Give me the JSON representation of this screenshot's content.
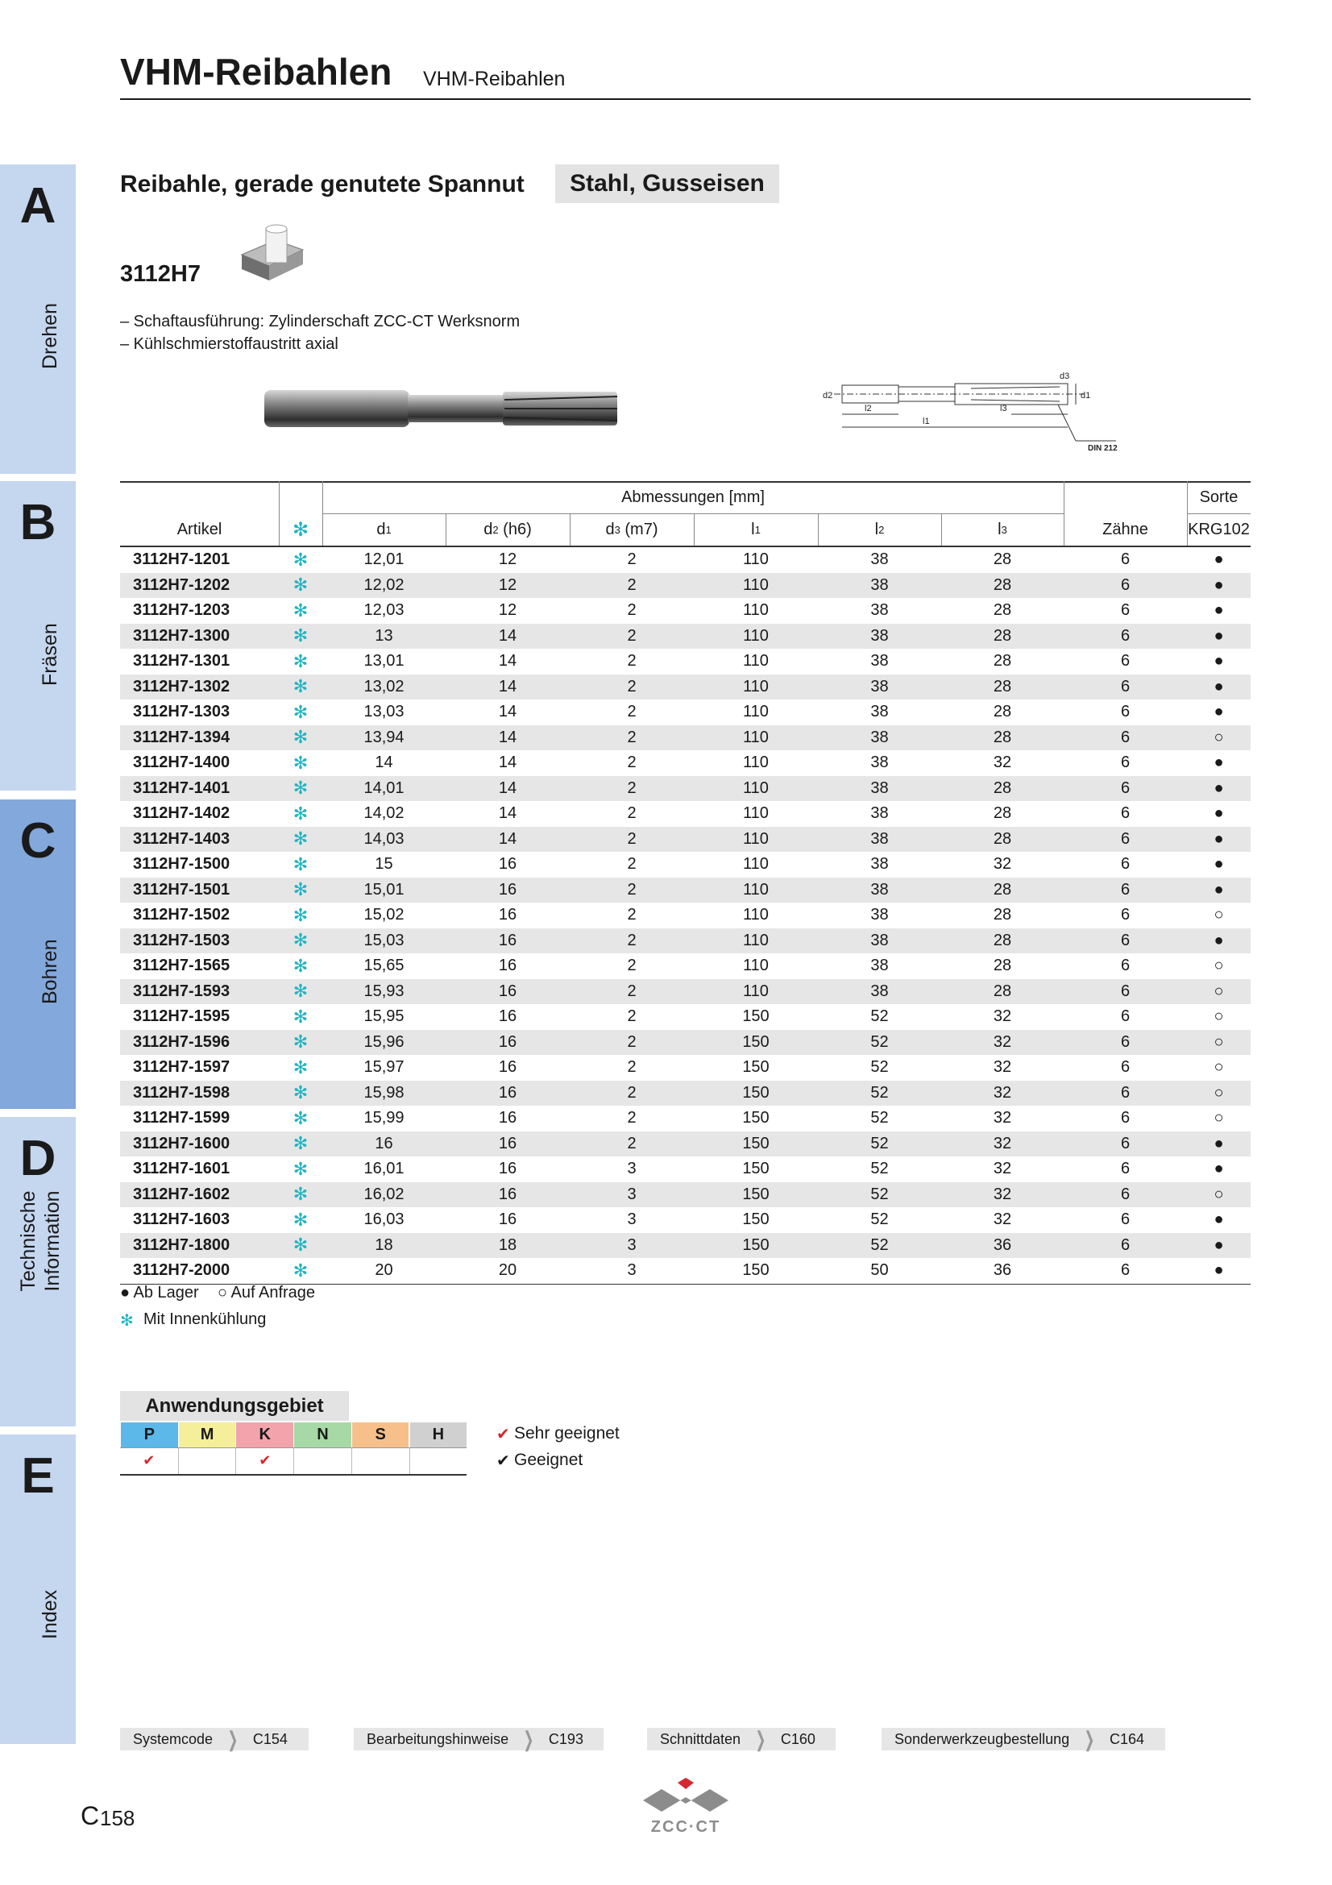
{
  "header": {
    "title": "VHM-Reibahlen",
    "subtitle": "VHM-Reibahlen"
  },
  "tabs": [
    {
      "letter": "A",
      "label": "Drehen"
    },
    {
      "letter": "B",
      "label": "Fräsen"
    },
    {
      "letter": "C",
      "label": "Bohren"
    },
    {
      "letter": "D",
      "label": "Technische Information"
    },
    {
      "letter": "E",
      "label": "Index"
    }
  ],
  "section": {
    "title": "Reibahle, gerade genutete Spannut",
    "material": "Stahl, Gusseisen",
    "code": "3112H7",
    "bullets": [
      "– Schaftausführung: Zylinderschaft ZCC-CT Werksnorm",
      "– Kühlschmierstoffaustritt axial"
    ]
  },
  "drawing": {
    "labels": [
      "d2",
      "l2",
      "l1",
      "l3",
      "d3",
      "d1"
    ],
    "norm": "DIN 212"
  },
  "table": {
    "group_header": "Abmessungen [mm]",
    "grade_header": "Sorte",
    "columns": [
      {
        "main": "Artikel"
      },
      {
        "main": "d",
        "sub": "1"
      },
      {
        "main": "d",
        "sub": "2",
        "suffix": " (h6)"
      },
      {
        "main": "d",
        "sub": "3",
        "suffix": " (m7)"
      },
      {
        "main": "l",
        "sub": "1"
      },
      {
        "main": "l",
        "sub": "2"
      },
      {
        "main": "l",
        "sub": "3"
      },
      {
        "main": "Zähne"
      },
      {
        "main": "KRG102"
      }
    ],
    "rows": [
      [
        "3112H7-1201",
        "12,01",
        "12",
        "2",
        "110",
        "38",
        "28",
        "6",
        "●"
      ],
      [
        "3112H7-1202",
        "12,02",
        "12",
        "2",
        "110",
        "38",
        "28",
        "6",
        "●"
      ],
      [
        "3112H7-1203",
        "12,03",
        "12",
        "2",
        "110",
        "38",
        "28",
        "6",
        "●"
      ],
      [
        "3112H7-1300",
        "13",
        "14",
        "2",
        "110",
        "38",
        "28",
        "6",
        "●"
      ],
      [
        "3112H7-1301",
        "13,01",
        "14",
        "2",
        "110",
        "38",
        "28",
        "6",
        "●"
      ],
      [
        "3112H7-1302",
        "13,02",
        "14",
        "2",
        "110",
        "38",
        "28",
        "6",
        "●"
      ],
      [
        "3112H7-1303",
        "13,03",
        "14",
        "2",
        "110",
        "38",
        "28",
        "6",
        "●"
      ],
      [
        "3112H7-1394",
        "13,94",
        "14",
        "2",
        "110",
        "38",
        "28",
        "6",
        "○"
      ],
      [
        "3112H7-1400",
        "14",
        "14",
        "2",
        "110",
        "38",
        "32",
        "6",
        "●"
      ],
      [
        "3112H7-1401",
        "14,01",
        "14",
        "2",
        "110",
        "38",
        "28",
        "6",
        "●"
      ],
      [
        "3112H7-1402",
        "14,02",
        "14",
        "2",
        "110",
        "38",
        "28",
        "6",
        "●"
      ],
      [
        "3112H7-1403",
        "14,03",
        "14",
        "2",
        "110",
        "38",
        "28",
        "6",
        "●"
      ],
      [
        "3112H7-1500",
        "15",
        "16",
        "2",
        "110",
        "38",
        "32",
        "6",
        "●"
      ],
      [
        "3112H7-1501",
        "15,01",
        "16",
        "2",
        "110",
        "38",
        "28",
        "6",
        "●"
      ],
      [
        "3112H7-1502",
        "15,02",
        "16",
        "2",
        "110",
        "38",
        "28",
        "6",
        "○"
      ],
      [
        "3112H7-1503",
        "15,03",
        "16",
        "2",
        "110",
        "38",
        "28",
        "6",
        "●"
      ],
      [
        "3112H7-1565",
        "15,65",
        "16",
        "2",
        "110",
        "38",
        "28",
        "6",
        "○"
      ],
      [
        "3112H7-1593",
        "15,93",
        "16",
        "2",
        "110",
        "38",
        "28",
        "6",
        "○"
      ],
      [
        "3112H7-1595",
        "15,95",
        "16",
        "2",
        "150",
        "52",
        "32",
        "6",
        "○"
      ],
      [
        "3112H7-1596",
        "15,96",
        "16",
        "2",
        "150",
        "52",
        "32",
        "6",
        "○"
      ],
      [
        "3112H7-1597",
        "15,97",
        "16",
        "2",
        "150",
        "52",
        "32",
        "6",
        "○"
      ],
      [
        "3112H7-1598",
        "15,98",
        "16",
        "2",
        "150",
        "52",
        "32",
        "6",
        "○"
      ],
      [
        "3112H7-1599",
        "15,99",
        "16",
        "2",
        "150",
        "52",
        "32",
        "6",
        "○"
      ],
      [
        "3112H7-1600",
        "16",
        "16",
        "2",
        "150",
        "52",
        "32",
        "6",
        "●"
      ],
      [
        "3112H7-1601",
        "16,01",
        "16",
        "3",
        "150",
        "52",
        "32",
        "6",
        "●"
      ],
      [
        "3112H7-1602",
        "16,02",
        "16",
        "3",
        "150",
        "52",
        "32",
        "6",
        "○"
      ],
      [
        "3112H7-1603",
        "16,03",
        "16",
        "3",
        "150",
        "52",
        "32",
        "6",
        "●"
      ],
      [
        "3112H7-1800",
        "18",
        "18",
        "3",
        "150",
        "52",
        "36",
        "6",
        "●"
      ],
      [
        "3112H7-2000",
        "20",
        "20",
        "3",
        "150",
        "50",
        "36",
        "6",
        "●"
      ]
    ]
  },
  "legend": {
    "stock": "● Ab Lager",
    "request": "○ Auf Anfrage",
    "cooling": "Mit Innenkühlung"
  },
  "application": {
    "title": "Anwendungsgebiet",
    "groups": [
      "P",
      "M",
      "K",
      "N",
      "S",
      "H"
    ],
    "very_suitable": "Sehr geeignet",
    "suitable": "Geeignet"
  },
  "footer": {
    "links": [
      {
        "label": "Systemcode",
        "code": "C154"
      },
      {
        "label": "Bearbeitungshinweise",
        "code": "C193"
      },
      {
        "label": "Schnittdaten",
        "code": "C160"
      },
      {
        "label": "Sonderwerkzeugbestellung",
        "code": "C164"
      }
    ],
    "page_letter": "C",
    "page_number": "158",
    "brand": "ZCC·CT"
  }
}
